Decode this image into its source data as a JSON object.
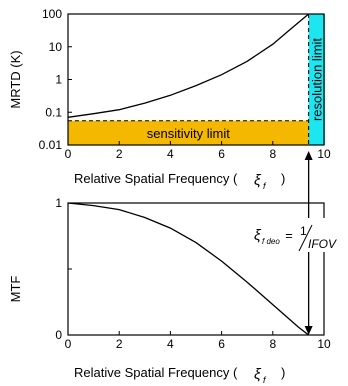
{
  "chart_data": [
    {
      "type": "line",
      "xlabel": "Relative Spatial Frequency (",
      "xlabel_symbol": "ξ",
      "xlabel_subscript": "f",
      "xlabel_close": ")",
      "ylabel": "MRTD (K)",
      "yscale": "log",
      "xlim": [
        0,
        10
      ],
      "ylim": [
        0.01,
        100
      ],
      "x_ticks": [
        "0",
        "2",
        "4",
        "6",
        "8",
        "10"
      ],
      "y_ticks": [
        "0.01",
        "0.1",
        "1",
        "10",
        "100"
      ],
      "series": [
        {
          "values": [
            {
              "x": 0,
              "y": 0.07
            },
            {
              "x": 1,
              "y": 0.09
            },
            {
              "x": 2,
              "y": 0.12
            },
            {
              "x": 3,
              "y": 0.19
            },
            {
              "x": 4,
              "y": 0.33
            },
            {
              "x": 5,
              "y": 0.65
            },
            {
              "x": 6,
              "y": 1.4
            },
            {
              "x": 7,
              "y": 3.6
            },
            {
              "x": 8,
              "y": 12
            },
            {
              "x": 8.6,
              "y": 30
            },
            {
              "x": 9.4,
              "y": 110
            }
          ]
        }
      ],
      "regions": {
        "sensitivity": {
          "label": "sensitivity limit",
          "color": "#f5b800",
          "x": [
            0,
            9.4
          ],
          "y": [
            0.01,
            0.055
          ]
        },
        "resolution": {
          "label": "resolution limit",
          "color": "#1ee6f0",
          "x": [
            9.4,
            10
          ],
          "y": [
            0.01,
            100
          ]
        }
      },
      "sensitivity_threshold": 0.055,
      "resolution_threshold_x": 9.4
    },
    {
      "type": "line",
      "xlabel": "Relative Spatial Frequency (",
      "xlabel_symbol": "ξ",
      "xlabel_subscript": "f",
      "xlabel_close": ")",
      "ylabel": "MTF",
      "xlim": [
        0,
        10
      ],
      "ylim": [
        0,
        1
      ],
      "x_ticks": [
        "0",
        "2",
        "4",
        "6",
        "8",
        "10"
      ],
      "y_ticks": [
        "0",
        "0.5",
        "1"
      ],
      "series": [
        {
          "values": [
            {
              "x": 0,
              "y": 1.0
            },
            {
              "x": 1,
              "y": 0.98
            },
            {
              "x": 2,
              "y": 0.95
            },
            {
              "x": 3,
              "y": 0.89
            },
            {
              "x": 4,
              "y": 0.81
            },
            {
              "x": 5,
              "y": 0.7
            },
            {
              "x": 6,
              "y": 0.56
            },
            {
              "x": 7,
              "y": 0.4
            },
            {
              "x": 8,
              "y": 0.23
            },
            {
              "x": 9,
              "y": 0.06
            },
            {
              "x": 9.4,
              "y": 0.0
            }
          ]
        }
      ],
      "annotation": {
        "symbol": "ξ",
        "subscript": "f deo",
        "equals": "=",
        "numerator": "1",
        "denominator": "IFOV"
      }
    }
  ]
}
